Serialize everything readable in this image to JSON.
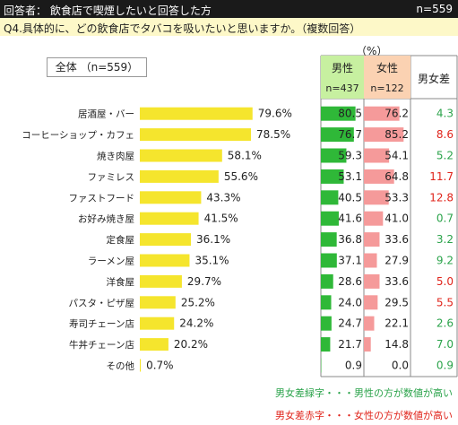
{
  "header": {
    "title": "回答者： 飲食店で喫煙したいと回答した方",
    "n": "n=559"
  },
  "question": "Q4.具体的に、どの飲食店でタバコを吸いたいと思いますか。（複数回答）",
  "overall_label": "全体 （n=559）",
  "unit_label": "（%）",
  "columns": {
    "male": {
      "label": "男性",
      "n": "n=437"
    },
    "female": {
      "label": "女性",
      "n": "n=122"
    },
    "diff": {
      "label": "男女差"
    }
  },
  "notes": {
    "green": "男女差緑字・・・男性の方が数値が高い",
    "red": "男女差赤字・・・女性の方が数値が高い"
  },
  "colors": {
    "overall_bar": "#f5e52d",
    "male_bar": "#2fb838",
    "female_bar": "#f59a9a",
    "male_header": "#c7f0a0",
    "female_header": "#fbd2b2",
    "diff_green": "#2aa34a",
    "diff_red": "#e0241b"
  },
  "chart_data": {
    "type": "bar",
    "orientation": "horizontal",
    "categories": [
      "居酒屋・バー",
      "コーヒーショップ・カフェ",
      "焼き肉屋",
      "ファミレス",
      "ファストフード",
      "お好み焼き屋",
      "定食屋",
      "ラーメン屋",
      "洋食屋",
      "パスタ・ピザ屋",
      "寿司チェーン店",
      "牛丼チェーン店",
      "その他"
    ],
    "series": [
      {
        "name": "全体",
        "values": [
          79.6,
          78.5,
          58.1,
          55.6,
          43.3,
          41.5,
          36.1,
          35.1,
          29.7,
          25.2,
          24.2,
          20.2,
          0.7
        ]
      },
      {
        "name": "男性",
        "values": [
          80.5,
          76.7,
          59.3,
          53.1,
          40.5,
          41.6,
          36.8,
          37.1,
          28.6,
          24.0,
          24.7,
          21.7,
          0.9
        ]
      },
      {
        "name": "女性",
        "values": [
          76.2,
          85.2,
          54.1,
          64.8,
          53.3,
          41.0,
          33.6,
          27.9,
          33.6,
          29.5,
          22.1,
          14.8,
          0.0
        ]
      }
    ],
    "overall_labels": [
      "79.6%",
      "78.5%",
      "58.1%",
      "55.6%",
      "43.3%",
      "41.5%",
      "36.1%",
      "35.1%",
      "29.7%",
      "25.2%",
      "24.2%",
      "20.2%",
      "0.7%"
    ],
    "male_labels": [
      "80.5",
      "76.7",
      "59.3",
      "53.1",
      "40.5",
      "41.6",
      "36.8",
      "37.1",
      "28.6",
      "24.0",
      "24.7",
      "21.7",
      "0.9"
    ],
    "female_labels": [
      "76.2",
      "85.2",
      "54.1",
      "64.8",
      "53.3",
      "41.0",
      "33.6",
      "27.9",
      "33.6",
      "29.5",
      "22.1",
      "14.8",
      "0.0"
    ],
    "diff": [
      4.3,
      8.6,
      5.2,
      11.7,
      12.8,
      0.7,
      3.2,
      9.2,
      5.0,
      5.5,
      2.6,
      7.0,
      0.9
    ],
    "diff_labels": [
      "4.3",
      "8.6",
      "5.2",
      "11.7",
      "12.8",
      "0.7",
      "3.2",
      "9.2",
      "5.0",
      "5.5",
      "2.6",
      "7.0",
      "0.9"
    ],
    "diff_higher": [
      "male",
      "female",
      "male",
      "female",
      "female",
      "male",
      "male",
      "male",
      "female",
      "female",
      "male",
      "male",
      "male"
    ],
    "xlim": [
      0,
      100
    ]
  }
}
